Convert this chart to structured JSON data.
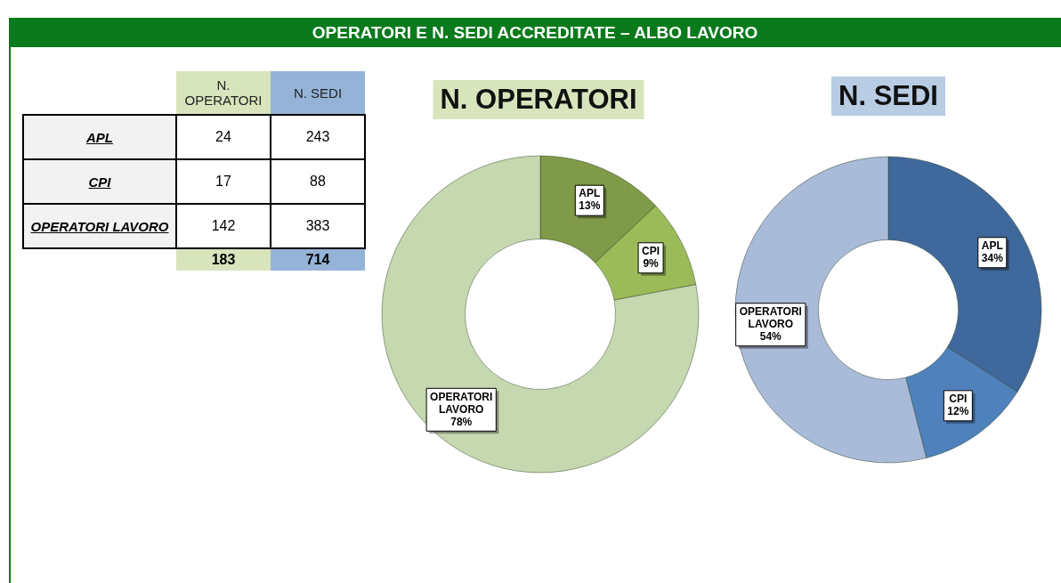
{
  "chart_data": [
    {
      "type": "other",
      "title": "OPERATORI E N. SEDI ACCREDITATE – ALBO LAVORO",
      "categories": [
        "APL",
        "CPI",
        "OPERATORI LAVORO"
      ],
      "series": [
        {
          "name": "N. OPERATORI",
          "values": [
            24,
            17,
            142
          ]
        },
        {
          "name": "N. SEDI",
          "values": [
            243,
            88,
            383
          ]
        }
      ],
      "data_labels": true,
      "totals": [
        "183",
        "714"
      ]
    },
    {
      "type": "donut",
      "title": "N. OPERATORI",
      "categories": [
        "APL",
        "CPI",
        "OPERATORI LAVORO"
      ],
      "values": [
        13,
        9,
        78
      ],
      "colors": [
        "#7f9a48",
        "#9bbb59",
        "#c6d8af"
      ],
      "value_labels": [
        "13%",
        "9%",
        "78%"
      ]
    },
    {
      "type": "donut",
      "title": "N. SEDI",
      "categories": [
        "APL",
        "CPI",
        "OPERATORI LAVORO"
      ],
      "values": [
        34,
        12,
        54
      ],
      "colors": [
        "#3f689c",
        "#4f81bd",
        "#a9bbd9"
      ],
      "value_labels": [
        "34%",
        "12%",
        "54%"
      ]
    }
  ]
}
